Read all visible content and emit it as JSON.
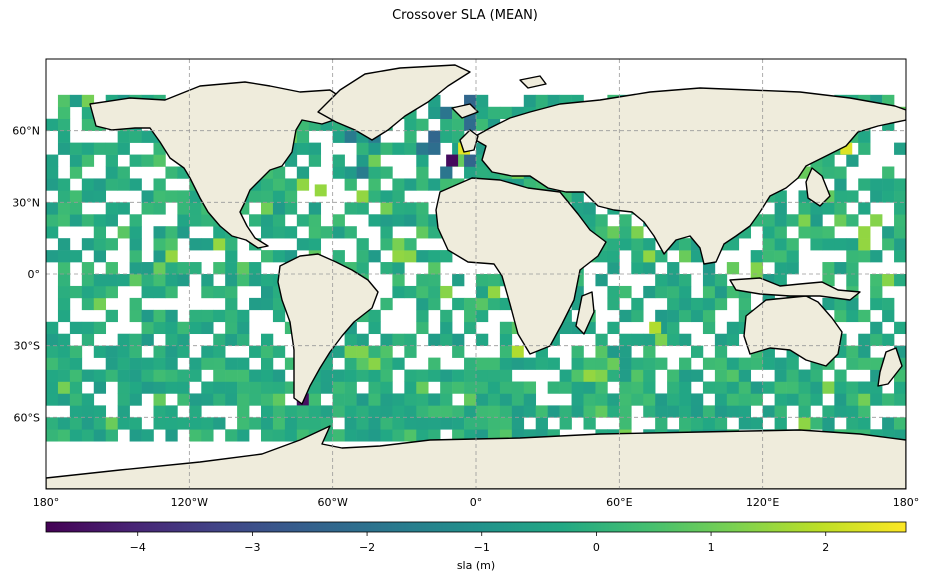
{
  "title": "Crossover SLA (MEAN)",
  "map": {
    "projection": "PlateCarree",
    "lon_range": [
      -180,
      180
    ],
    "lat_range": [
      -90,
      90
    ],
    "grid": "dashed gray",
    "land_color": "#efecdc",
    "coast_color": "#000000"
  },
  "lat_ticks": [
    {
      "value": 60,
      "label": "60°N"
    },
    {
      "value": 30,
      "label": "30°N"
    },
    {
      "value": 0,
      "label": "0°"
    },
    {
      "value": -30,
      "label": "30°S"
    },
    {
      "value": -60,
      "label": "60°S"
    }
  ],
  "lon_ticks": [
    {
      "value": -180,
      "label": "180°"
    },
    {
      "value": -120,
      "label": "120°W"
    },
    {
      "value": -60,
      "label": "60°W"
    },
    {
      "value": 0,
      "label": "0°"
    },
    {
      "value": 60,
      "label": "60°E"
    },
    {
      "value": 120,
      "label": "120°E"
    },
    {
      "value": 180,
      "label": "180°"
    }
  ],
  "colorbar": {
    "colormap": "viridis",
    "range": [
      -4.8,
      2.7
    ],
    "ticks": [
      {
        "value": -4,
        "label": "−4"
      },
      {
        "value": -3,
        "label": "−3"
      },
      {
        "value": -2,
        "label": "−2"
      },
      {
        "value": -1,
        "label": "−1"
      },
      {
        "value": 0,
        "label": "0"
      },
      {
        "value": 1,
        "label": "1"
      },
      {
        "value": 2,
        "label": "2"
      }
    ],
    "label": "sla (m)"
  },
  "chart_data": {
    "type": "heatmap",
    "cell_size_deg": 5,
    "description_of_values": "gridded mean sea level anomaly at crossover points, mostly between -1 and 0.5 m",
    "notable_cells": [
      {
        "lon": -10,
        "lat": 47.5,
        "value": -4.6
      },
      {
        "lon": -5,
        "lat": 52.5,
        "value": 2.4
      },
      {
        "lon": -72.5,
        "lat": -52.5,
        "value": -4.5
      },
      {
        "lon": 155,
        "lat": 52.5,
        "value": 2.3
      },
      {
        "lon": 140,
        "lat": 52.5,
        "value": 1.8
      },
      {
        "lon": 17.5,
        "lat": -32.5,
        "value": 1.8
      },
      {
        "lon": 75,
        "lat": -22.5,
        "value": 1.8
      },
      {
        "lon": -65,
        "lat": 35,
        "value": 1.5
      }
    ]
  }
}
